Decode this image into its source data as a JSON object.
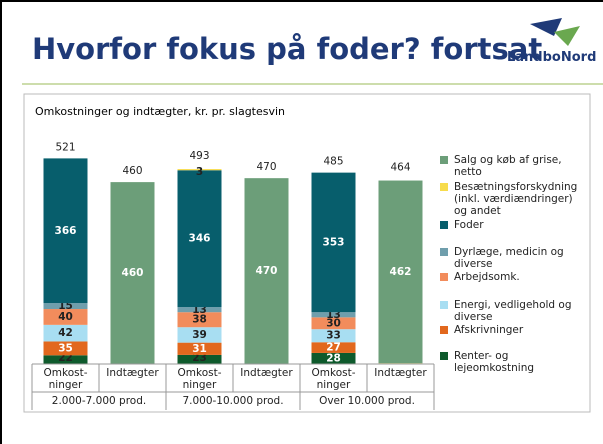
{
  "header": {
    "title": "Hvorfor fokus på foder? fortsat",
    "logo": "LandboNord"
  },
  "chart_data": {
    "type": "stacked_bar",
    "title": "Omkostninger og indtægter, kr. pr. slagtesvin",
    "categories": [
      "Omkost-ninger",
      "Indtægter",
      "Omkost-ninger",
      "Indtægter",
      "Omkost-ninger",
      "Indtægter"
    ],
    "groups": [
      "2.000-7.000 prod.",
      "7.000-10.000 prod.",
      "Over 10.000 prod."
    ],
    "totals": [
      521,
      460,
      493,
      470,
      485,
      464
    ],
    "series": [
      {
        "name": "Renter- og lejeomkostning",
        "color": "#0e5a2c",
        "values": [
          22,
          null,
          23,
          null,
          28,
          null
        ]
      },
      {
        "name": "Afskrivninger",
        "color": "#e2681e",
        "values": [
          35,
          null,
          31,
          null,
          27,
          null
        ]
      },
      {
        "name": "Energi, vedligehold og diverse",
        "color": "#a8def2",
        "values": [
          42,
          null,
          39,
          null,
          33,
          null
        ]
      },
      {
        "name": "Arbejdsomk.",
        "color": "#f28c5c",
        "values": [
          40,
          null,
          38,
          null,
          30,
          null
        ]
      },
      {
        "name": "Dyrlæge, medicin og diverse",
        "color": "#6f9eac",
        "values": [
          15,
          null,
          13,
          null,
          13,
          null
        ]
      },
      {
        "name": "Foder",
        "color": "#075e6c",
        "values": [
          366,
          null,
          346,
          null,
          353,
          null
        ]
      },
      {
        "name": "Besætningsforskydning (inkl. værdiændringer) og andet",
        "color": "#f7dc4c",
        "values": [
          null,
          null,
          3,
          null,
          null,
          2
        ]
      },
      {
        "name": "Salg og køb af grise, netto",
        "color": "#6c9e79",
        "values": [
          null,
          460,
          null,
          470,
          null,
          462
        ]
      }
    ]
  }
}
